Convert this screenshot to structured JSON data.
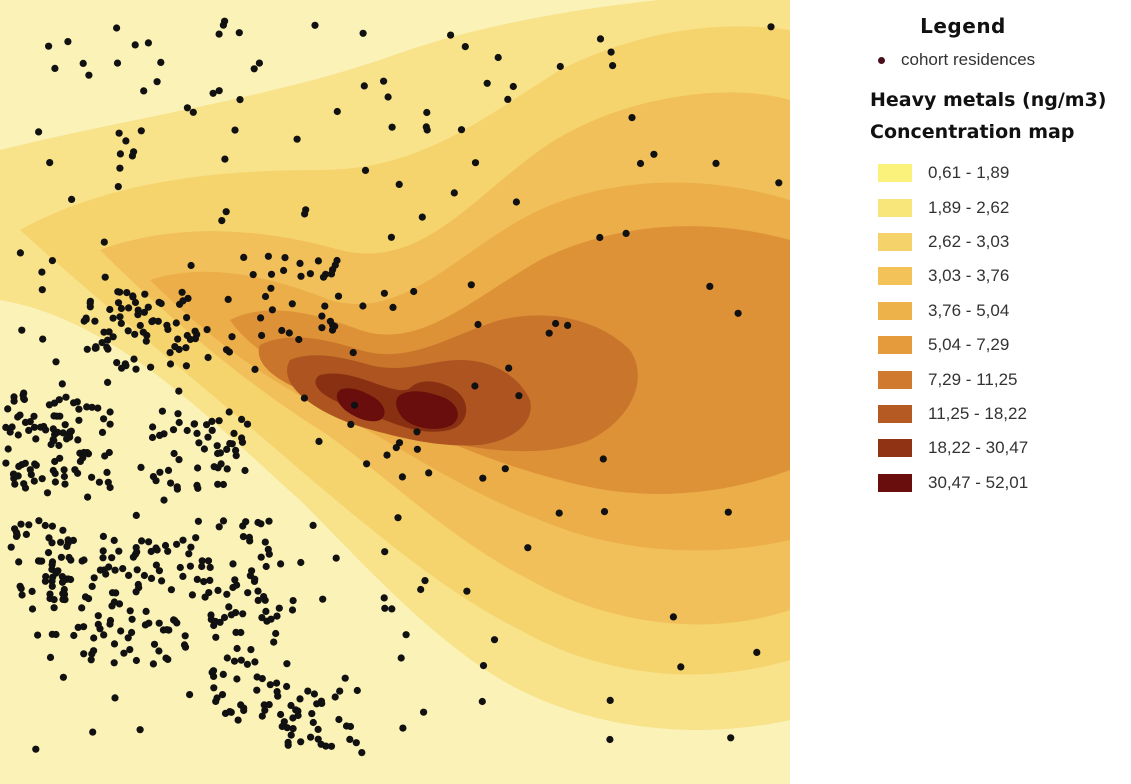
{
  "legend": {
    "title": "Legend",
    "points_label": "cohort residences",
    "layer_title_1": "Heavy metals (ng/m3)",
    "layer_title_2": "Concentration map",
    "classes": [
      {
        "label": "0,61 - 1,89",
        "color": "#fbf27c"
      },
      {
        "label": "1,89 - 2,62",
        "color": "#f8e67a"
      },
      {
        "label": "2,62 - 3,03",
        "color": "#f5d36a"
      },
      {
        "label": "3,03 - 3,76",
        "color": "#f3c359"
      },
      {
        "label": "3,76 - 5,04",
        "color": "#eeb24a"
      },
      {
        "label": "5,04 - 7,29",
        "color": "#e59a3c"
      },
      {
        "label": "7,29 - 11,25",
        "color": "#cf7a2e"
      },
      {
        "label": "11,25 - 18,22",
        "color": "#b45a22"
      },
      {
        "label": "18,22 - 30,47",
        "color": "#8f3314"
      },
      {
        "label": "30,47 - 52,01",
        "color": "#6a0d0d"
      }
    ]
  },
  "colors": {
    "background": "#fbf2b8",
    "point": "#111111",
    "legend_point": "#4a0f1a"
  }
}
